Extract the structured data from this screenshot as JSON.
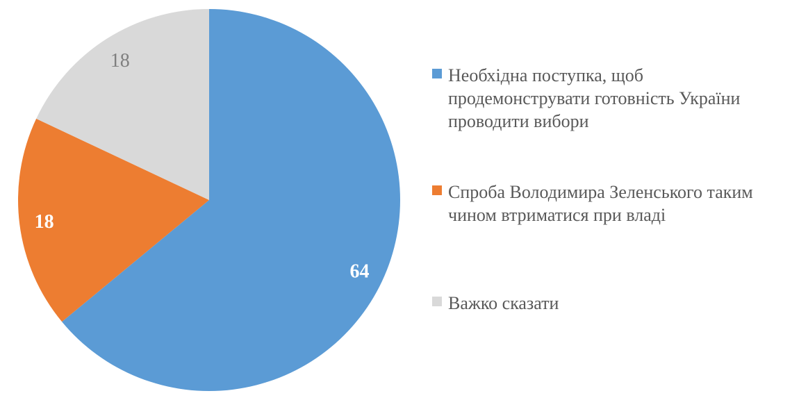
{
  "chart_data": {
    "type": "pie",
    "title": "",
    "legend_position": "right",
    "start_angle_deg": 0,
    "direction": "clockwise",
    "unit": "percent",
    "categories": [
      "Необхідна поступка, щоб продемонструвати готовність України проводити вибори",
      "Спроба Володимира Зеленського таким чином втриматися при владі",
      "Важко сказати"
    ],
    "values": [
      64,
      18,
      18
    ],
    "slices": [
      {
        "label": "Необхідна поступка, щоб продемонструвати готовність України проводити вибори",
        "value": 64,
        "data_label": "64",
        "color": "#5B9BD5",
        "data_label_color": "#FFFFFF",
        "data_label_weight": "bold"
      },
      {
        "label": "Спроба Володимира Зеленського таким чином втриматися при владі",
        "value": 18,
        "data_label": "18",
        "color": "#ED7D31",
        "data_label_color": "#FFFFFF",
        "data_label_weight": "bold"
      },
      {
        "label": "Важко сказати",
        "value": 18,
        "data_label": "18",
        "color": "#D9D9D9",
        "data_label_color": "#7F7F7F",
        "data_label_weight": "normal"
      }
    ]
  },
  "colors": {
    "background": "#FFFFFF",
    "legend_text": "#595959"
  }
}
